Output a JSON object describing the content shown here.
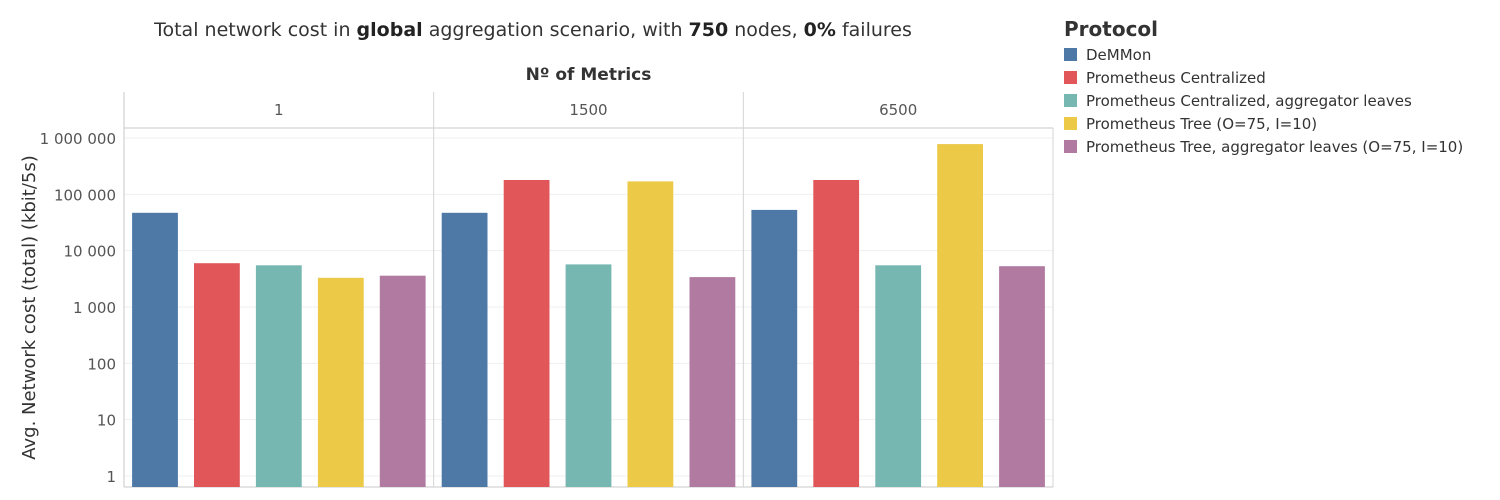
{
  "title_parts": {
    "p1": "Total network cost in ",
    "b1": "global",
    "p2": " aggregation scenario, with ",
    "b2": "750",
    "p3": " nodes, ",
    "b3": "0%",
    "p4": " failures"
  },
  "chart_data": {
    "type": "bar",
    "title": "Total network cost in global aggregation scenario, with 750 nodes, 0% failures",
    "facet_label": "Nº of Metrics",
    "facets": [
      "1",
      "1500",
      "6500"
    ],
    "ylabel": "Avg. Network cost (total) (kbit/5s)",
    "yscale": "log",
    "ylim": [
      1,
      1000000
    ],
    "yticks": [
      1,
      10,
      100,
      1000,
      10000,
      100000,
      1000000
    ],
    "ytick_labels": [
      "1",
      "10",
      "100",
      "1 000",
      "10 000",
      "100 000",
      "1 000 000"
    ],
    "legend_title": "Protocol",
    "legend_position": "right",
    "grid": true,
    "series": [
      {
        "name": "DeMMon",
        "color": "#4e79a7",
        "values": [
          47000,
          47000,
          53000
        ]
      },
      {
        "name": "Prometheus Centralized",
        "color": "#e15759",
        "values": [
          6000,
          180000,
          180000
        ]
      },
      {
        "name": "Prometheus Centralized, aggregator leaves",
        "color": "#76b7b2",
        "values": [
          5500,
          5700,
          5500
        ]
      },
      {
        "name": "Prometheus Tree (O=75, I=10)",
        "color": "#edc948",
        "values": [
          3300,
          170000,
          780000
        ]
      },
      {
        "name": "Prometheus Tree, aggregator leaves (O=75, I=10)",
        "color": "#b07aa1",
        "values": [
          3600,
          3400,
          5300
        ]
      }
    ]
  }
}
